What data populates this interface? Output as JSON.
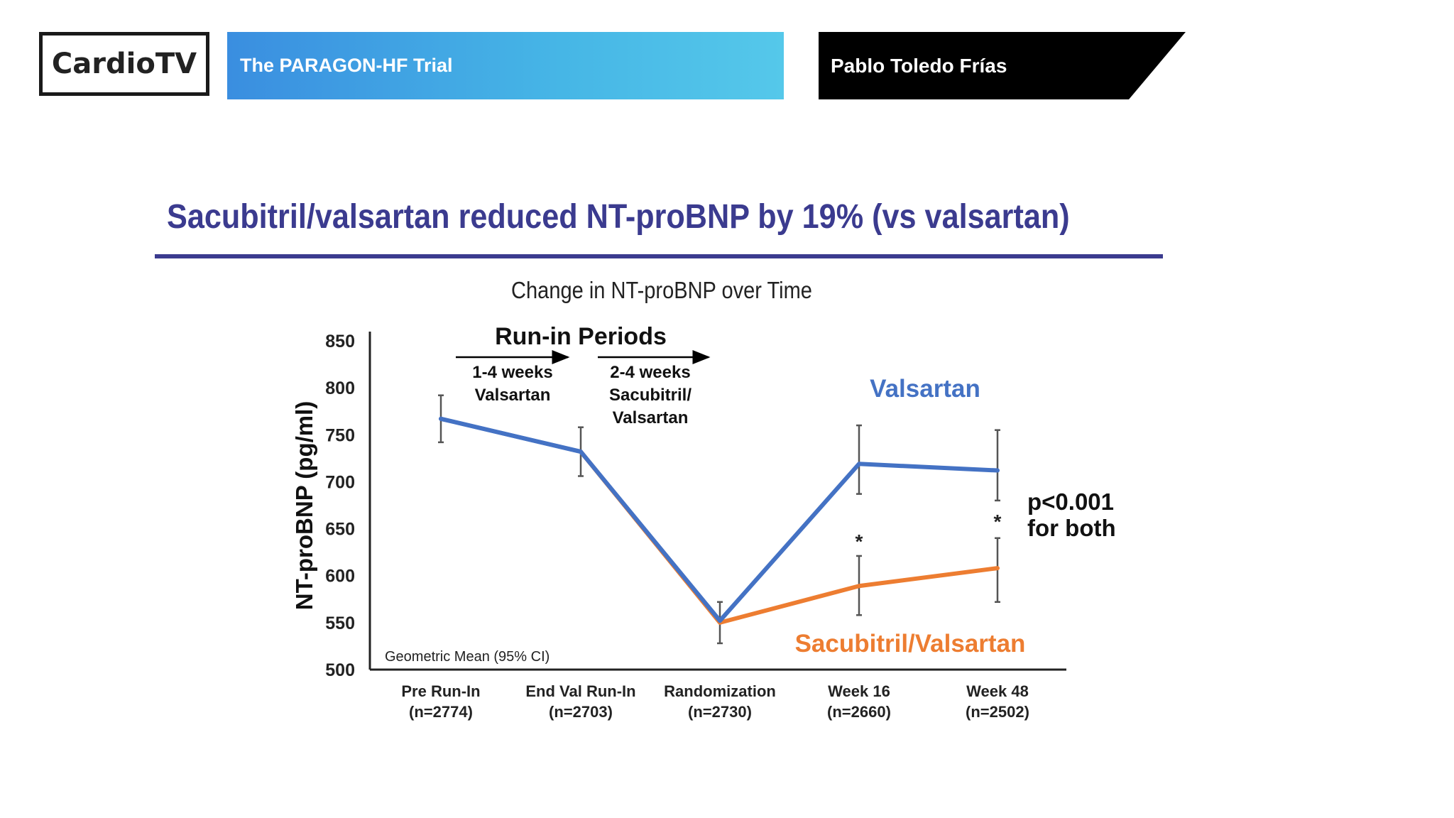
{
  "header": {
    "logo": "CardioTV",
    "trial_title": "The PARAGON-HF Trial",
    "speaker": "Pablo Toledo Frías"
  },
  "slide": {
    "headline": "Sacubitril/valsartan reduced NT-proBNP by 19% (vs valsartan)"
  },
  "colors": {
    "headline": "#3b3b8f",
    "valsartan": "#4472c4",
    "sacubitril_valsartan": "#ed7d31",
    "title_bar_start": "#3a8ee0",
    "title_bar_end": "#55c8ea"
  },
  "chart_data": {
    "type": "line",
    "title": "Change in NT-proBNP over Time",
    "ylabel": "NT-proBNP (pg/ml)",
    "xlabel": "",
    "ylim": [
      500,
      850
    ],
    "yticks": [
      "850",
      "800",
      "750",
      "700",
      "650",
      "600",
      "550",
      "500"
    ],
    "categories": [
      {
        "name": "Pre Run-In",
        "n": "(n=2774)"
      },
      {
        "name": "End Val Run-In",
        "n": "(n=2703)"
      },
      {
        "name": "Randomization",
        "n": "(n=2730)"
      },
      {
        "name": "Week 16",
        "n": "(n=2660)"
      },
      {
        "name": "Week 48",
        "n": "(n=2502)"
      }
    ],
    "series": [
      {
        "name": "Valsartan",
        "values": [
          767,
          732,
          552,
          719,
          712
        ],
        "ci_low": [
          742,
          706,
          528,
          687,
          680
        ],
        "ci_high": [
          792,
          758,
          572,
          760,
          755
        ]
      },
      {
        "name": "Sacubitril/Valsartan",
        "values": [
          null,
          732,
          550,
          589,
          608
        ],
        "ci_low": [
          null,
          null,
          null,
          558,
          572
        ],
        "ci_high": [
          null,
          null,
          null,
          621,
          640
        ]
      }
    ],
    "run_in": {
      "title": "Run-in Periods",
      "period1": [
        "1-4 weeks",
        "Valsartan"
      ],
      "period2": [
        "2-4 weeks",
        "Sacubitril/",
        "Valsartan"
      ]
    },
    "significance_markers": [
      "*",
      "*"
    ],
    "p_value": [
      "p<0.001",
      "for both"
    ],
    "footnote": "Geometric Mean (95% CI)"
  }
}
